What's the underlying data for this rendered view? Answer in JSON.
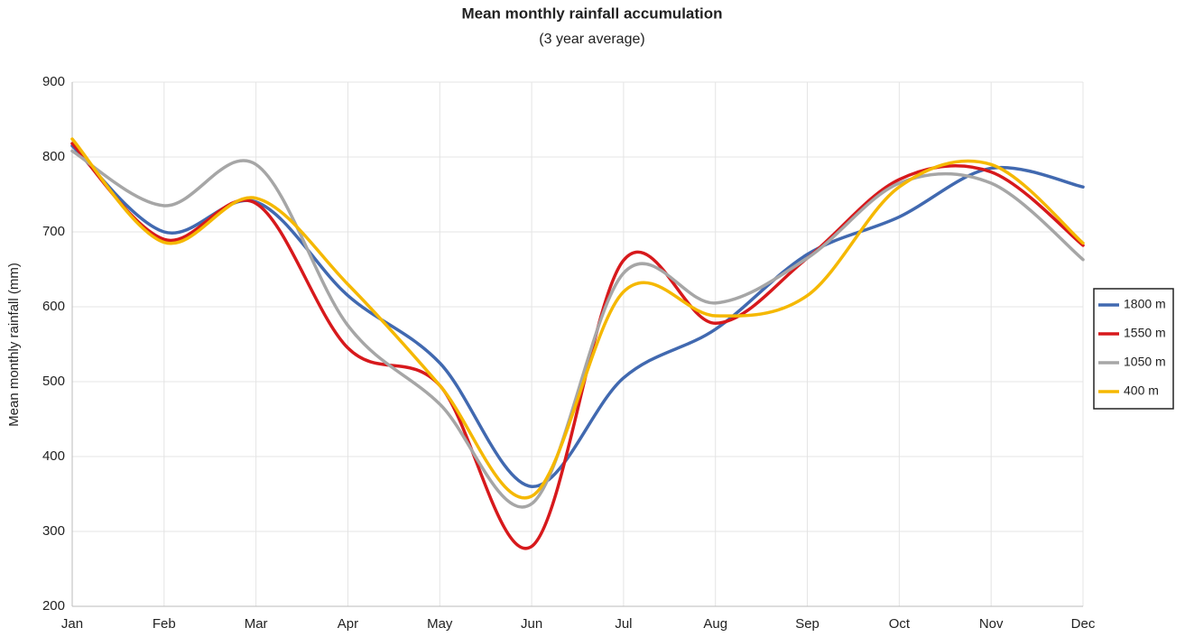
{
  "chart_data": {
    "type": "line",
    "title": "Mean monthly rainfall accumulation",
    "subtitle": "(3 year average)",
    "y_label": "Mean monthly rainfall (mm)",
    "categories": [
      "Jan",
      "Feb",
      "Mar",
      "Apr",
      "May",
      "Jun",
      "Jul",
      "Aug",
      "Sep",
      "Oct",
      "Nov",
      "Dec"
    ],
    "series": [
      {
        "name": "1800 m",
        "color": "#4169b0",
        "values": [
          815,
          700,
          740,
          615,
          525,
          360,
          505,
          570,
          670,
          720,
          785,
          760
        ]
      },
      {
        "name": "1550 m",
        "color": "#d7191c",
        "values": [
          818,
          690,
          738,
          545,
          495,
          280,
          662,
          578,
          665,
          770,
          780,
          682
        ]
      },
      {
        "name": "1050 m",
        "color": "#a6a6a6",
        "values": [
          808,
          735,
          790,
          575,
          470,
          337,
          645,
          605,
          665,
          765,
          765,
          663
        ]
      },
      {
        "name": "400 m",
        "color": "#f5b800",
        "values": [
          824,
          686,
          745,
          630,
          495,
          347,
          620,
          588,
          615,
          760,
          790,
          685
        ]
      }
    ],
    "ylim": [
      200,
      900
    ],
    "yticks": [
      200,
      300,
      400,
      500,
      600,
      700,
      800,
      900
    ],
    "grid": true,
    "smooth": true,
    "legend": "right"
  }
}
